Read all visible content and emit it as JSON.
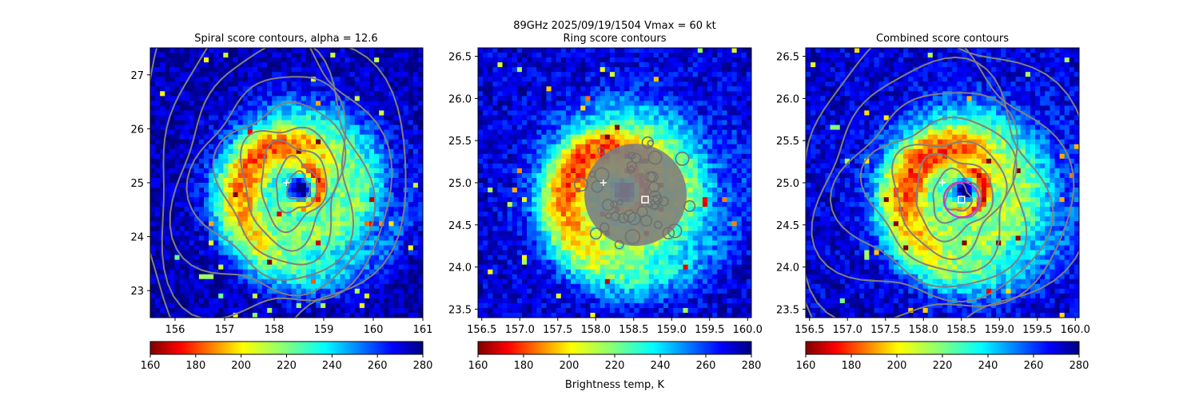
{
  "figure": {
    "suptitle_line1": "89GHz  2025/09/19/1504    Vmax = 60 kt",
    "colorbar_label": "Brightness temp, K"
  },
  "colors": {
    "contour": "#808080",
    "marker": "#ffffff",
    "magenta_circle": "#cc33cc"
  },
  "colormap": {
    "name": "jet_r",
    "min": 160,
    "max": 280,
    "ticks": [
      "160",
      "180",
      "200",
      "220",
      "240",
      "260",
      "280"
    ]
  },
  "chart_data": [
    {
      "type": "heatmap",
      "title": "Spiral score contours, alpha = 12.6",
      "xlim": [
        155.5,
        161.0
      ],
      "ylim": [
        22.5,
        27.5
      ],
      "xticks": [
        "156",
        "157",
        "158",
        "159",
        "160",
        "161"
      ],
      "yticks": [
        "23",
        "24",
        "25",
        "26",
        "27"
      ],
      "storm_center": [
        158.25,
        25.0
      ],
      "score_max": [
        158.55,
        24.9
      ],
      "coldest_core_K": 165,
      "background_K": 275
    },
    {
      "type": "heatmap",
      "title": "Ring score contours",
      "xlim": [
        156.45,
        160.05
      ],
      "ylim": [
        23.4,
        26.6
      ],
      "xticks": [
        "156.5",
        "157.0",
        "157.5",
        "158.0",
        "158.5",
        "159.0",
        "159.5",
        "160.0"
      ],
      "yticks": [
        "23.5",
        "24.0",
        "24.5",
        "25.0",
        "25.5",
        "26.0",
        "26.5"
      ],
      "storm_center": [
        158.1,
        25.0
      ],
      "score_max": [
        158.65,
        24.8
      ],
      "coldest_core_K": 165,
      "background_K": 270
    },
    {
      "type": "heatmap",
      "title": "Combined score contours",
      "xlim": [
        156.45,
        160.05
      ],
      "ylim": [
        23.4,
        26.6
      ],
      "xticks": [
        "156.5",
        "157.0",
        "157.5",
        "158.0",
        "158.5",
        "159.0",
        "159.5",
        "160.0"
      ],
      "yticks": [
        "23.5",
        "24.0",
        "24.5",
        "25.0",
        "25.5",
        "26.0",
        "26.5"
      ],
      "storm_center": [
        158.25,
        25.0
      ],
      "score_max": [
        158.5,
        24.8
      ],
      "coldest_core_K": 165,
      "background_K": 270
    }
  ]
}
